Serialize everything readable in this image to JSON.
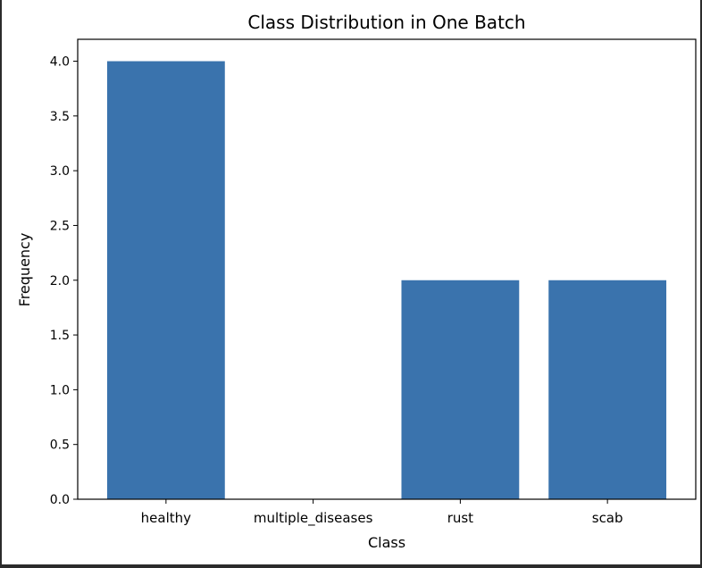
{
  "chart_data": {
    "type": "bar",
    "title": "Class Distribution in One Batch",
    "xlabel": "Class",
    "ylabel": "Frequency",
    "categories": [
      "healthy",
      "multiple_diseases",
      "rust",
      "scab"
    ],
    "values": [
      4,
      0,
      2,
      2
    ],
    "ylim": [
      0,
      4.2
    ],
    "yticks": [
      "0.0",
      "0.5",
      "1.0",
      "1.5",
      "2.0",
      "2.5",
      "3.0",
      "3.5",
      "4.0"
    ],
    "grid": false,
    "bar_color": "#3a73ad"
  }
}
